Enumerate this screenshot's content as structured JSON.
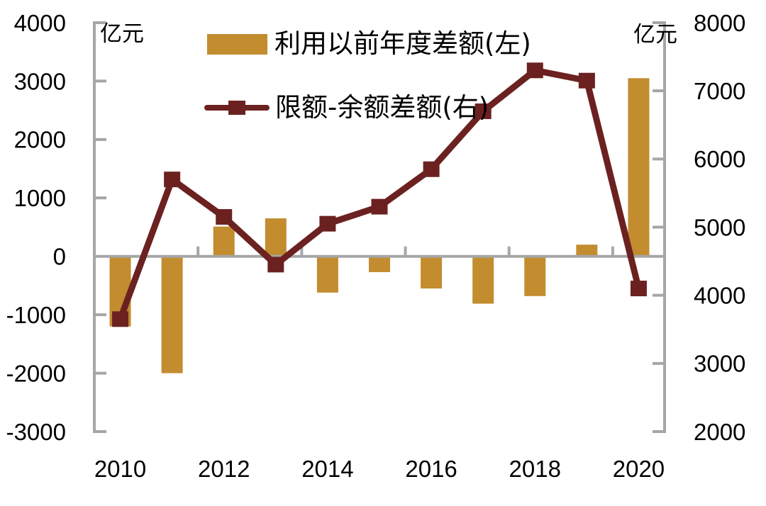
{
  "chart_data": {
    "type": "bar+line-dual-axis",
    "categories": [
      "2010",
      "2011",
      "2012",
      "2013",
      "2014",
      "2015",
      "2016",
      "2017",
      "2018",
      "2019",
      "2020"
    ],
    "x_tick_label_step": 2,
    "series": [
      {
        "name": "利用以前年度差额(左)",
        "type": "bar",
        "axis": "left",
        "color": "#C28C2F",
        "values": [
          -1200,
          -2000,
          510,
          650,
          -620,
          -270,
          -550,
          -810,
          -680,
          200,
          3050
        ]
      },
      {
        "name": "限额-余额差额(右)",
        "type": "line",
        "axis": "right",
        "color": "#6B2120",
        "marker": "square",
        "values": [
          3650,
          5700,
          5150,
          4450,
          5050,
          5300,
          5850,
          6700,
          7300,
          7150,
          4100
        ]
      }
    ],
    "left_axis": {
      "label": "亿元",
      "ticks": [
        4000,
        3000,
        2000,
        1000,
        0,
        -1000,
        -2000,
        -3000
      ],
      "max": 4000,
      "min": -3000
    },
    "right_axis": {
      "label": "亿元",
      "ticks": [
        8000,
        7000,
        6000,
        5000,
        4000,
        3000,
        2000
      ],
      "max": 8000,
      "min": 2000
    },
    "legend_position": "top-center",
    "grid": false,
    "colors": {
      "axis": "#A6A6A6",
      "text": "#000000",
      "background": "#FFFFFF"
    }
  }
}
